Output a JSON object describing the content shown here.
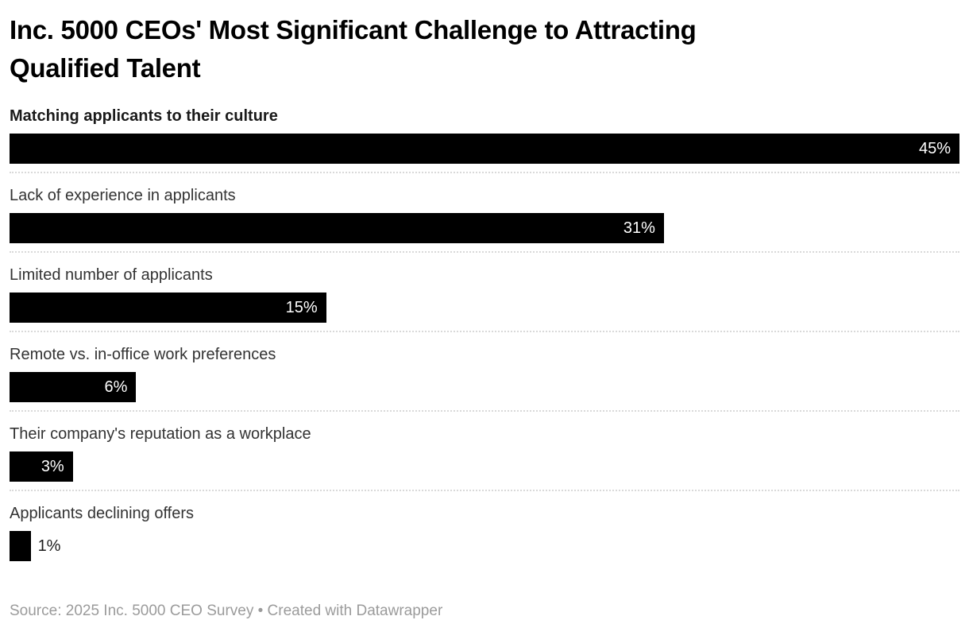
{
  "header": {
    "title_lines": [
      "Inc. 5000 CEOs' Most Significant Challenge to Attracting",
      "Qualified Talent"
    ]
  },
  "chart_data": {
    "type": "bar",
    "orientation": "horizontal",
    "title": "Inc. 5000 CEOs' Most Significant Challenge to Attracting Qualified Talent",
    "unit": "%",
    "axis_max": 45,
    "grid": false,
    "legend": false,
    "bar_color": "#000000",
    "value_label_color_inside": "#ffffff",
    "value_label_color_outside": "#1a1a1a",
    "categories": [
      "Matching applicants to their culture",
      "Lack of experience in applicants",
      "Limited number of applicants",
      "Remote vs. in-office work preferences",
      "Their company's reputation as a workplace",
      "Applicants declining offers"
    ],
    "values": [
      45,
      31,
      15,
      6,
      3,
      1
    ],
    "rows": [
      {
        "label": "Matching applicants to their culture",
        "value": 45,
        "value_label": "45%",
        "emphasis": true,
        "value_label_position": "inside"
      },
      {
        "label": "Lack of experience in applicants",
        "value": 31,
        "value_label": "31%",
        "emphasis": false,
        "value_label_position": "inside"
      },
      {
        "label": "Limited number of applicants",
        "value": 15,
        "value_label": "15%",
        "emphasis": false,
        "value_label_position": "inside"
      },
      {
        "label": "Remote vs. in-office work preferences",
        "value": 6,
        "value_label": "6%",
        "emphasis": false,
        "value_label_position": "inside"
      },
      {
        "label": "Their company's reputation as a workplace",
        "value": 3,
        "value_label": "3%",
        "emphasis": false,
        "value_label_position": "inside"
      },
      {
        "label": "Applicants declining offers",
        "value": 1,
        "value_label": "1%",
        "emphasis": false,
        "value_label_position": "outside"
      }
    ]
  },
  "footer": {
    "text": "Source: 2025 Inc. 5000 CEO Survey • Created with Datawrapper"
  }
}
